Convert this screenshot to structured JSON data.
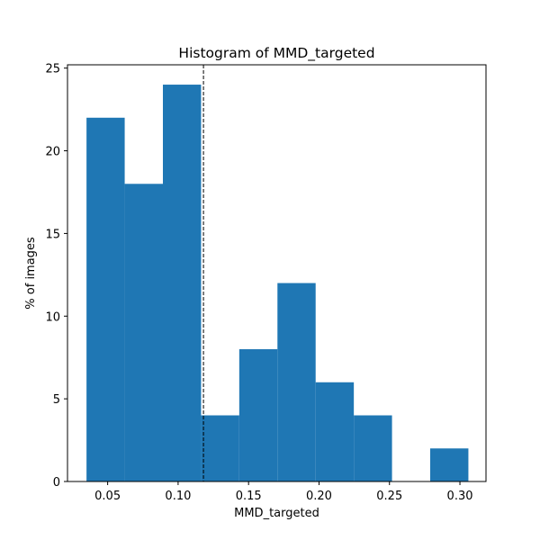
{
  "chart_data": {
    "type": "bar",
    "title": "Histogram of MMD_targeted",
    "xlabel": "MMD_targeted",
    "ylabel": "% of images",
    "xlim": [
      0.0215,
      0.3185
    ],
    "ylim": [
      0,
      25.2
    ],
    "xticks": [
      0.05,
      0.1,
      0.15,
      0.2,
      0.25,
      0.3
    ],
    "xtick_labels": [
      "0.05",
      "0.10",
      "0.15",
      "0.20",
      "0.25",
      "0.30"
    ],
    "yticks": [
      0,
      5,
      10,
      15,
      20,
      25
    ],
    "ytick_labels": [
      "0",
      "5",
      "10",
      "15",
      "20",
      "25"
    ],
    "bin_edges": [
      0.035,
      0.0621,
      0.0892,
      0.1163,
      0.1434,
      0.1705,
      0.1976,
      0.2247,
      0.2518,
      0.2789,
      0.306
    ],
    "values": [
      22,
      18,
      24,
      4,
      8,
      12,
      6,
      4,
      0,
      2
    ],
    "bar_color": "#1f77b4",
    "reference_line": {
      "x": 0.118,
      "style": "dashed",
      "color": "#000000"
    },
    "grid": false,
    "legend": "none"
  }
}
